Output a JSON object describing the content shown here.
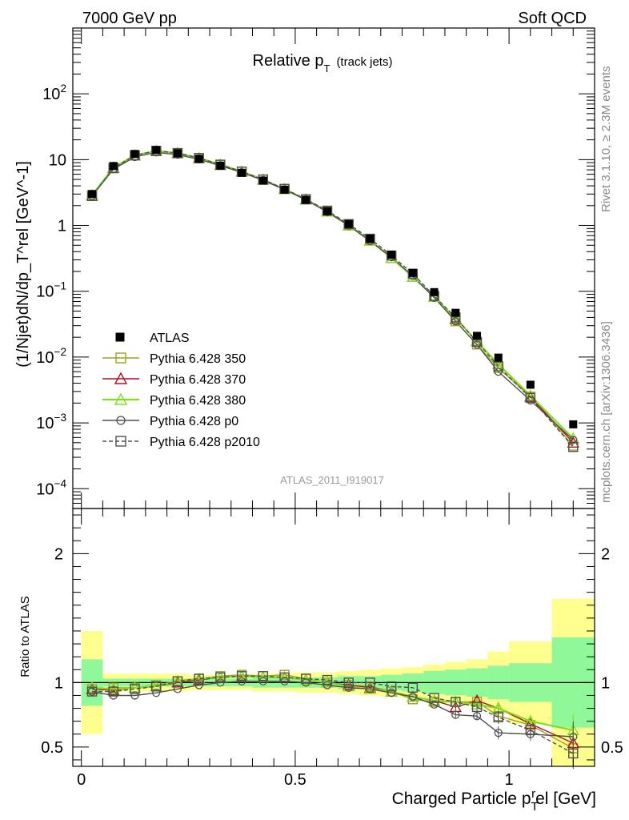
{
  "header": {
    "left": "7000 GeV pp",
    "right": "Soft QCD"
  },
  "side_labels": {
    "rivet": "Rivet 3.1.10, ≥ 2.3M events",
    "mcplots": "mcplots.cern.ch [arXiv:1306.3436]"
  },
  "chart_data": [
    {
      "panel": "main",
      "type": "line",
      "title": "Relative p_T (track jets)",
      "title_main": "Relative p",
      "title_sub": "T",
      "title_suffix": "(track jets)",
      "ylabel": "(1/Njet)dN/dp_T^rel [GeV^-1]",
      "yscale": "log",
      "ylim": [
        5e-05,
        1000
      ],
      "xlim": [
        -0.02,
        1.2
      ],
      "y_tick_labels": [
        "10^-4",
        "10^-3",
        "10^-2",
        "10^-1",
        "1",
        "10",
        "10^2"
      ],
      "analysis_label": "ATLAS_2011_I919017",
      "x": [
        0.025,
        0.075,
        0.125,
        0.175,
        0.225,
        0.275,
        0.325,
        0.375,
        0.425,
        0.475,
        0.525,
        0.575,
        0.625,
        0.675,
        0.725,
        0.775,
        0.825,
        0.875,
        0.925,
        0.975,
        1.05,
        1.15
      ],
      "series": [
        {
          "name": "ATLAS",
          "color": "#000000",
          "marker": "filled-square",
          "values": [
            3.0,
            8.0,
            12.2,
            14.0,
            12.5,
            10.3,
            8.1,
            6.3,
            4.8,
            3.5,
            2.45,
            1.65,
            1.05,
            0.63,
            0.36,
            0.19,
            0.097,
            0.047,
            0.021,
            0.0098,
            0.0038,
            0.00095
          ]
        },
        {
          "name": "Pythia 6.428 350",
          "color": "#a0a020",
          "marker": "open-square",
          "dash": false,
          "values": [
            2.9,
            7.6,
            11.7,
            13.6,
            12.6,
            10.6,
            8.4,
            6.6,
            5.0,
            3.6,
            2.5,
            1.65,
            1.02,
            0.6,
            0.32,
            0.165,
            0.082,
            0.035,
            0.0155,
            0.0068,
            0.0025,
            0.00045
          ]
        },
        {
          "name": "Pythia 6.428 370",
          "color": "#b01020",
          "marker": "open-triangle",
          "dash": false,
          "values": [
            2.85,
            7.5,
            11.6,
            13.5,
            12.5,
            10.5,
            8.3,
            6.55,
            4.95,
            3.55,
            2.48,
            1.62,
            1.0,
            0.59,
            0.32,
            0.165,
            0.082,
            0.038,
            0.0175,
            0.0078,
            0.0025,
            0.0005
          ]
        },
        {
          "name": "Pythia 6.428 380",
          "color": "#80e020",
          "marker": "open-triangle",
          "dash": false,
          "values": [
            2.9,
            7.6,
            11.7,
            13.6,
            12.6,
            10.6,
            8.4,
            6.6,
            4.95,
            3.55,
            2.48,
            1.62,
            1.0,
            0.59,
            0.32,
            0.165,
            0.082,
            0.039,
            0.0172,
            0.0078,
            0.0026,
            0.00058
          ]
        },
        {
          "name": "Pythia 6.428 p0",
          "color": "#505050",
          "marker": "open-circle",
          "dash": false,
          "values": [
            2.8,
            7.2,
            11.0,
            12.9,
            11.9,
            10.1,
            8.1,
            6.4,
            4.85,
            3.5,
            2.45,
            1.6,
            1.0,
            0.58,
            0.33,
            0.17,
            0.08,
            0.035,
            0.0155,
            0.006,
            0.0022,
            0.00055
          ]
        },
        {
          "name": "Pythia 6.428 p2010",
          "color": "#505050",
          "marker": "open-square",
          "dash": true,
          "values": [
            2.8,
            7.4,
            11.6,
            13.6,
            12.6,
            10.6,
            8.4,
            6.6,
            5.0,
            3.6,
            2.5,
            1.68,
            1.05,
            0.63,
            0.35,
            0.185,
            0.085,
            0.04,
            0.017,
            0.0072,
            0.0024,
            0.00043
          ]
        }
      ],
      "legend_position": "bottom-left"
    },
    {
      "panel": "ratio",
      "type": "line",
      "ylabel": "Ratio to ATLAS",
      "xlabel": "Charged Particle p_T^rel [GeV]",
      "xlabel_text": "Charged Particle p",
      "xlabel_sub": "T",
      "xlabel_sup": "r",
      "xlabel_tail": "el [GeV]",
      "ylim": [
        0.35,
        2.35
      ],
      "xlim": [
        -0.02,
        1.2
      ],
      "y_tick_labels": [
        "0.5",
        "1",
        "2"
      ],
      "x_tick_labels": [
        "0",
        "0.5",
        "1"
      ],
      "band_x_edges": [
        0.0,
        0.05,
        0.1,
        0.15,
        0.2,
        0.25,
        0.3,
        0.35,
        0.4,
        0.45,
        0.5,
        0.55,
        0.6,
        0.65,
        0.7,
        0.75,
        0.8,
        0.85,
        0.9,
        0.95,
        1.0,
        1.1,
        1.2
      ],
      "band_inner_halfwidth": [
        0.18,
        0.03,
        0.03,
        0.03,
        0.03,
        0.03,
        0.03,
        0.03,
        0.04,
        0.04,
        0.04,
        0.04,
        0.05,
        0.05,
        0.06,
        0.07,
        0.09,
        0.1,
        0.11,
        0.13,
        0.15,
        0.35
      ],
      "band_outer_halfwidth": [
        0.4,
        0.07,
        0.07,
        0.07,
        0.07,
        0.06,
        0.06,
        0.06,
        0.07,
        0.07,
        0.08,
        0.08,
        0.09,
        0.1,
        0.11,
        0.12,
        0.14,
        0.16,
        0.18,
        0.24,
        0.32,
        0.65
      ],
      "series": [
        {
          "name": "Pythia 6.428 350",
          "values": [
            0.95,
            0.96,
            0.96,
            0.98,
            1.01,
            1.03,
            1.05,
            1.06,
            1.05,
            1.06,
            1.03,
            1.0,
            0.98,
            0.97,
            0.93,
            0.87,
            0.85,
            0.85,
            0.85,
            0.74,
            0.67,
            0.49
          ]
        },
        {
          "name": "Pythia 6.428 370",
          "values": [
            0.95,
            0.94,
            0.96,
            0.97,
            1.0,
            1.02,
            1.04,
            1.05,
            1.04,
            1.04,
            1.02,
            1.0,
            0.98,
            0.96,
            0.93,
            0.89,
            0.86,
            0.81,
            0.86,
            0.8,
            0.68,
            0.53
          ]
        },
        {
          "name": "Pythia 6.428 380",
          "values": [
            0.96,
            0.95,
            0.96,
            0.97,
            1.01,
            1.03,
            1.04,
            1.05,
            1.04,
            1.04,
            1.02,
            1.0,
            0.97,
            0.95,
            0.93,
            0.89,
            0.86,
            0.85,
            0.83,
            0.8,
            0.7,
            0.63
          ]
        },
        {
          "name": "Pythia 6.428 p0",
          "values": [
            0.93,
            0.9,
            0.9,
            0.92,
            0.95,
            0.98,
            1.0,
            1.01,
            1.01,
            1.01,
            1.0,
            0.98,
            0.96,
            0.95,
            0.92,
            0.89,
            0.83,
            0.75,
            0.74,
            0.61,
            0.6,
            0.58
          ]
        },
        {
          "name": "Pythia 6.428 p2010",
          "values": [
            0.93,
            0.93,
            0.95,
            0.97,
            1.01,
            1.03,
            1.04,
            1.05,
            1.05,
            1.04,
            1.03,
            1.02,
            1.0,
            1.0,
            0.97,
            0.96,
            0.88,
            0.85,
            0.81,
            0.73,
            0.63,
            0.45
          ]
        }
      ]
    }
  ]
}
